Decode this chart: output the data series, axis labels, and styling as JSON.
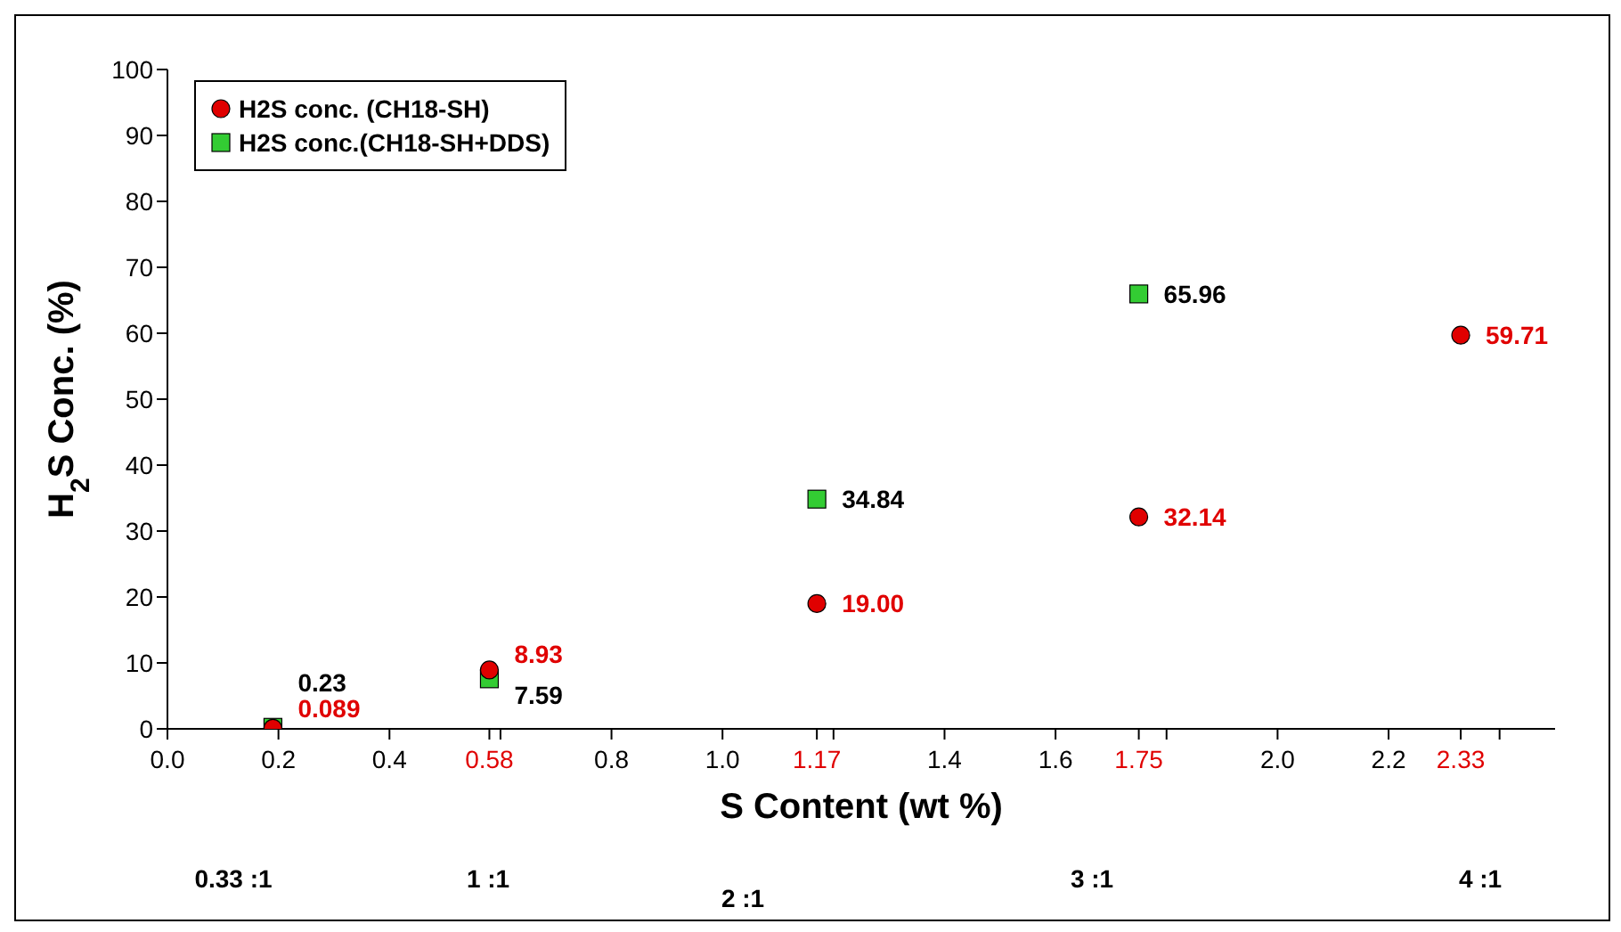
{
  "chart_data": {
    "type": "scatter",
    "xlabel": "S Content (wt %)",
    "ylabel": "H$_{2}$S Conc. (%)",
    "x": [
      0.19,
      0.58,
      1.17,
      1.75,
      2.33
    ],
    "series": [
      {
        "name": "H2S conc. (CH18-SH)",
        "color": "#e00000",
        "marker": "circle",
        "values": [
          0.089,
          8.93,
          19.0,
          32.14,
          59.71
        ],
        "value_labels": [
          "0.089",
          "8.93",
          "19.00",
          "32.14",
          "59.71"
        ]
      },
      {
        "name": "H2S conc.(CH18-SH+DDS)",
        "color": "#33cc33",
        "marker": "square",
        "values": [
          0.23,
          7.59,
          34.84,
          65.96,
          null
        ],
        "value_labels": [
          "0.23",
          "7.59",
          "34.84",
          "65.96",
          null
        ]
      }
    ],
    "xlim": [
      0,
      2.5
    ],
    "ylim": [
      0,
      100
    ],
    "xticks": [
      {
        "value": 0,
        "label": "0.0"
      },
      {
        "value": 0.2,
        "label": "0.2"
      },
      {
        "value": 0.4,
        "label": "0.4"
      },
      {
        "value": 0.6,
        "label": null
      },
      {
        "value": 0.8,
        "label": "0.8"
      },
      {
        "value": 1,
        "label": "1.0"
      },
      {
        "value": 1.2,
        "label": null
      },
      {
        "value": 1.4,
        "label": "1.4"
      },
      {
        "value": 1.6,
        "label": "1.6"
      },
      {
        "value": 1.8,
        "label": null
      },
      {
        "value": 2,
        "label": "2.0"
      },
      {
        "value": 2.2,
        "label": "2.2"
      },
      {
        "value": 2.4,
        "label": null
      }
    ],
    "yticks": [
      0,
      10,
      20,
      30,
      40,
      50,
      60,
      70,
      80,
      90,
      100
    ],
    "grid": false,
    "legend": "top left",
    "annotations": [
      "0.58",
      "1.17",
      "1.75",
      "2.33",
      "0.33 :1",
      "1 :1",
      "2 :1",
      "3 :1",
      "4 :1"
    ]
  }
}
